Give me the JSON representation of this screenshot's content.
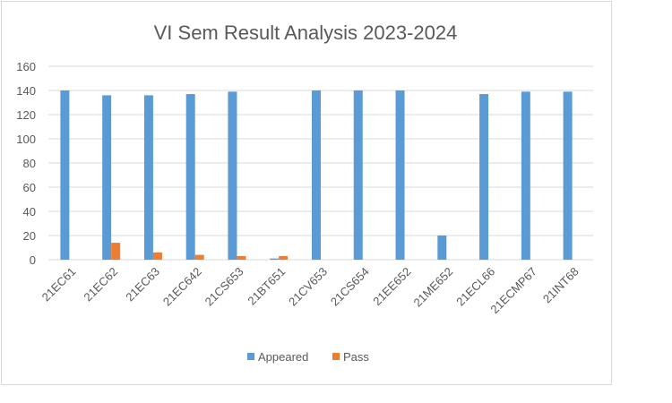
{
  "chart_data": {
    "type": "bar",
    "title": "VI Sem Result Analysis 2023-2024",
    "xlabel": "",
    "ylabel": "",
    "categories": [
      "21EC61",
      "21EC62",
      "21EC63",
      "21EC642",
      "21CS653",
      "21BT651",
      "21CV653",
      "21CS654",
      "21EE652",
      "21ME652",
      "21ECL66",
      "21ECMP67",
      "21INT68"
    ],
    "series": [
      {
        "name": "Appeared",
        "color": "#5b9bd5",
        "values": [
          140,
          136,
          136,
          137,
          139,
          1,
          140,
          140,
          140,
          20,
          137,
          139,
          139
        ]
      },
      {
        "name": "Pass",
        "color": "#ed7d31",
        "values": [
          0,
          14,
          6,
          4,
          3,
          3,
          0,
          0,
          0,
          0,
          0,
          0,
          0
        ]
      }
    ],
    "ylim": [
      0,
      160
    ],
    "yticks": [
      0,
      20,
      40,
      60,
      80,
      100,
      120,
      140,
      160
    ],
    "grid": true,
    "legend": "bottom"
  }
}
